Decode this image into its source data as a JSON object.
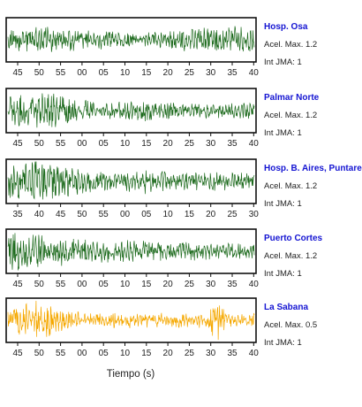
{
  "chart_data": {
    "type": "line",
    "title": "",
    "xlabel": "Tiempo (s)",
    "ylabel": "",
    "grid": false,
    "legend": "none",
    "panels": [
      {
        "station": "Hosp. Osa",
        "accel": "Acel. Max. 1.2",
        "jma": "Int JMA: 1",
        "color": "#1e6b1e",
        "amplitude": 0.55,
        "envelope": "uniform",
        "tick_labels": [
          "45",
          "50",
          "55",
          "00",
          "05",
          "10",
          "15",
          "20",
          "25",
          "30",
          "35",
          "40"
        ]
      },
      {
        "station": "Palmar Norte",
        "accel": "Acel. Max. 1.2",
        "jma": "Int JMA: 1",
        "color": "#1e6b1e",
        "amplitude": 0.7,
        "envelope": "early-burst",
        "tick_labels": [
          "45",
          "50",
          "55",
          "00",
          "05",
          "10",
          "15",
          "20",
          "25",
          "30",
          "35",
          "40"
        ]
      },
      {
        "station": "Hosp. B. Aires, Puntare",
        "accel": "Acel. Max. 1.2",
        "jma": "Int JMA: 1",
        "color": "#1e6b1e",
        "amplitude": 0.8,
        "envelope": "early-burst",
        "tick_labels": [
          "35",
          "40",
          "45",
          "50",
          "55",
          "00",
          "05",
          "10",
          "15",
          "20",
          "25",
          "30"
        ]
      },
      {
        "station": "Puerto Cortes",
        "accel": "Acel. Max. 1.2",
        "jma": "Int JMA: 1",
        "color": "#1e6b1e",
        "amplitude": 0.85,
        "envelope": "decay",
        "tick_labels": [
          "45",
          "50",
          "55",
          "00",
          "05",
          "10",
          "15",
          "20",
          "25",
          "30",
          "35",
          "40"
        ]
      },
      {
        "station": "La Sabana",
        "accel": "Acel. Max. 0.5",
        "jma": "Int JMA: 1",
        "color": "#f5a800",
        "amplitude": 0.75,
        "envelope": "two-bursts",
        "tick_labels": [
          "45",
          "50",
          "55",
          "00",
          "05",
          "10",
          "15",
          "20",
          "25",
          "30",
          "35",
          "40"
        ]
      }
    ]
  }
}
